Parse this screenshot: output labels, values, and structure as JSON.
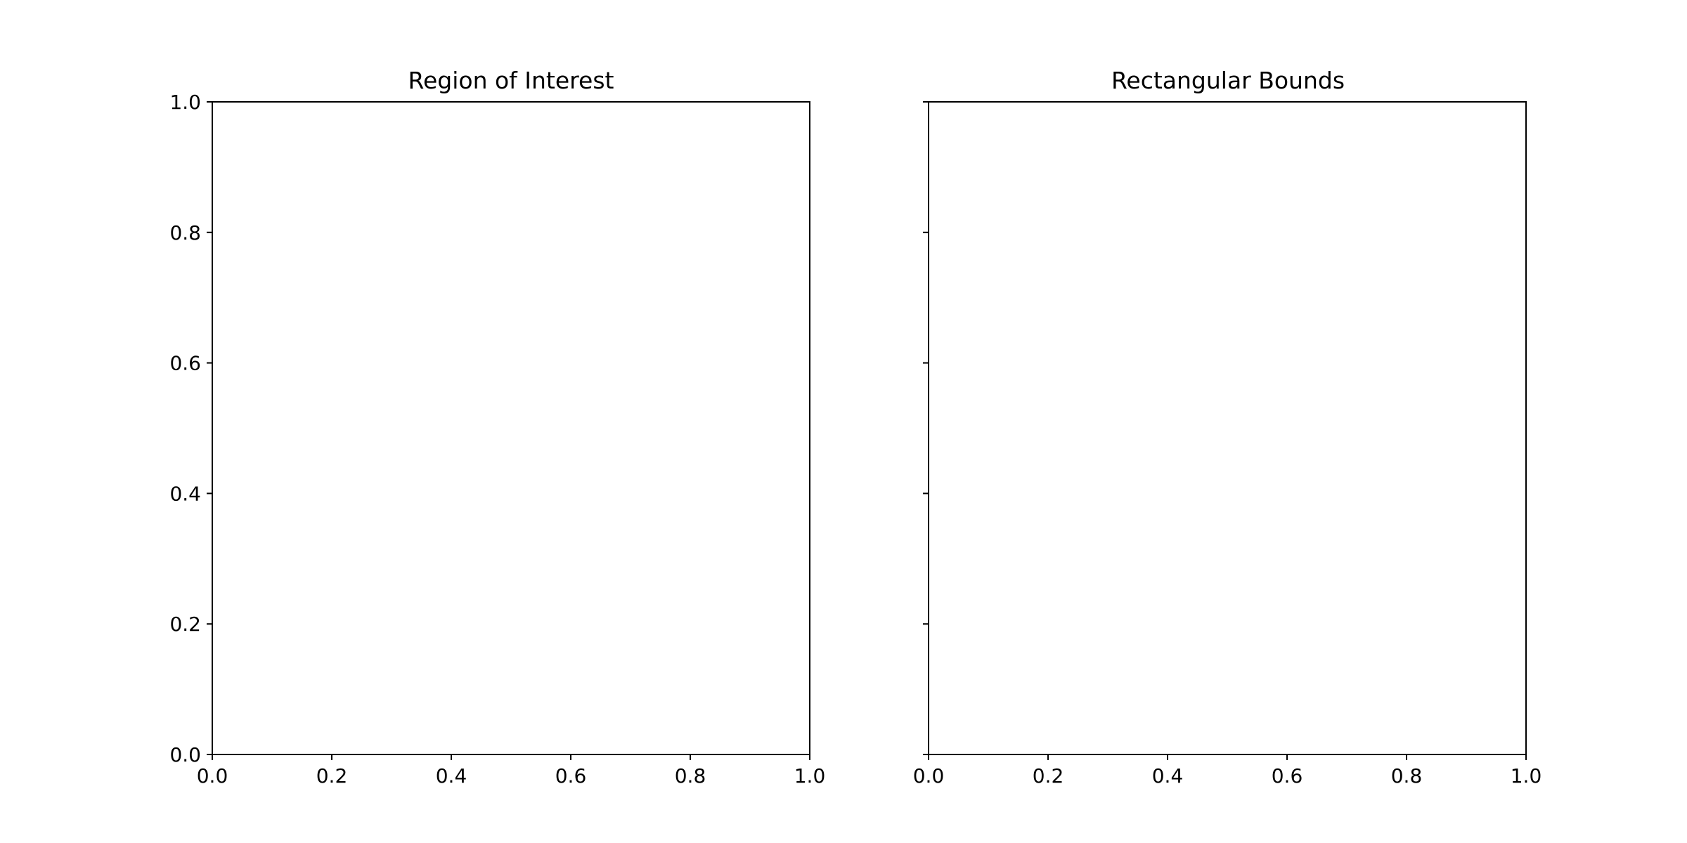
{
  "chart_data": [
    {
      "type": "scatter",
      "title": "Region of Interest",
      "xlabel": "",
      "ylabel": "",
      "xlim": [
        0.0,
        1.0
      ],
      "ylim": [
        0.0,
        1.0
      ],
      "xticks": [
        "0.0",
        "0.2",
        "0.4",
        "0.6",
        "0.8",
        "1.0"
      ],
      "yticks": [
        "0.0",
        "0.2",
        "0.4",
        "0.6",
        "0.8",
        "1.0"
      ],
      "show_ytick_labels": true,
      "grid": false,
      "series": []
    },
    {
      "type": "scatter",
      "title": "Rectangular Bounds",
      "xlabel": "",
      "ylabel": "",
      "xlim": [
        0.0,
        1.0
      ],
      "ylim": [
        0.0,
        1.0
      ],
      "xticks": [
        "0.0",
        "0.2",
        "0.4",
        "0.6",
        "0.8",
        "1.0"
      ],
      "yticks": [
        "0.0",
        "0.2",
        "0.4",
        "0.6",
        "0.8",
        "1.0"
      ],
      "show_ytick_labels": false,
      "grid": false,
      "series": []
    }
  ],
  "colors": {
    "axes": "#000000",
    "background": "#ffffff"
  }
}
